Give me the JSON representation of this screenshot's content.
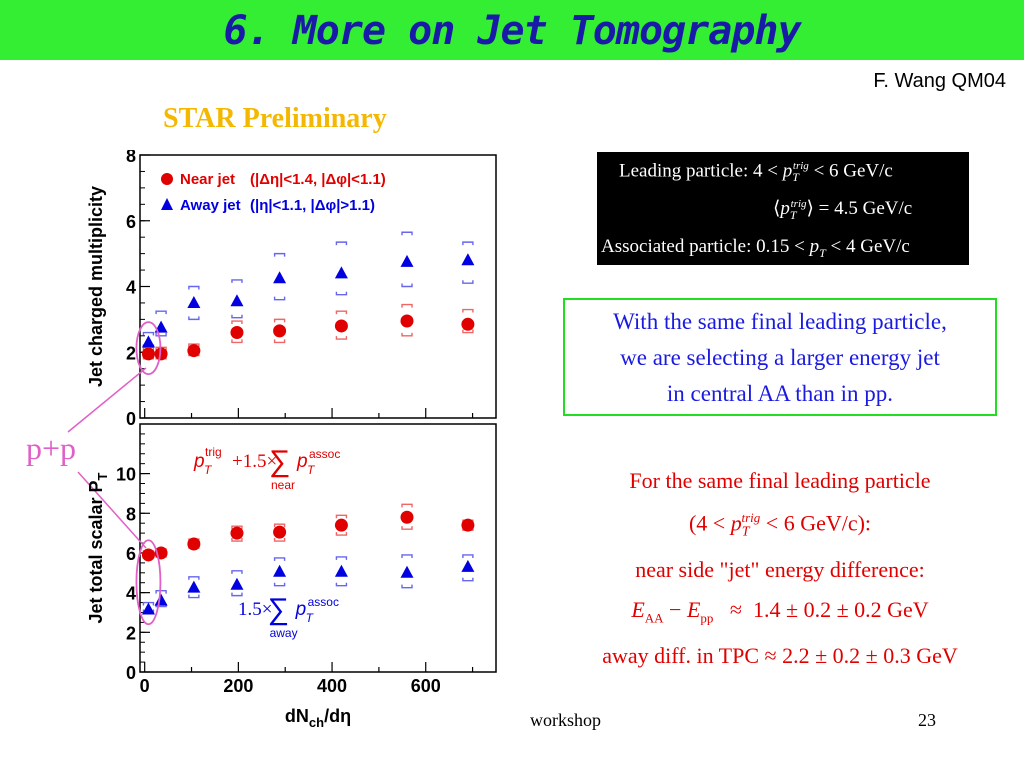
{
  "slide": {
    "title": "6. More on Jet Tomography",
    "author": "F. Wang QM04",
    "preliminary_label": "STAR Preliminary",
    "pp_label": "p+p",
    "footer_center": "workshop",
    "page_number": "23"
  },
  "trigger_box": {
    "line1": "Leading particle: 4 < p_T^trig < 6 GeV/c",
    "line2": "<p_T^trig> = 4.5 GeV/c",
    "line3": "Associated particle: 0.15 < p_T < 4 GeV/c"
  },
  "green_box": {
    "line1": "With the same final leading particle,",
    "line2": "we are selecting a larger energy jet",
    "line3": "in central AA than in pp."
  },
  "conclusion": {
    "line1": "For the same final leading particle",
    "line2": "(4 < p_T^trig < 6 GeV/c):",
    "line3": "near side \"jet\" energy difference:",
    "line4": "E_AA − E_pp ≈ 1.4 ± 0.2 ± 0.2 GeV",
    "line5": "away diff. in TPC ≈ 2.2 ± 0.2 ± 0.3 GeV"
  },
  "chart_data": [
    {
      "type": "scatter",
      "ylabel": "Jet charged multiplicity",
      "ylim": [
        0,
        8
      ],
      "yticks": [
        0,
        2,
        4,
        6,
        8
      ],
      "xlim": [
        -10,
        750
      ],
      "legend": [
        {
          "name": "Near jet",
          "cut": "(|Δη|<1.4, |Δφ|<1.1)",
          "color": "#e00000",
          "marker": "circle"
        },
        {
          "name": "Away jet",
          "cut": "(|η|<1.1, |Δφ|>1.1)",
          "color": "#0000e0",
          "marker": "triangle"
        }
      ],
      "series": [
        {
          "name": "Near jet",
          "x": [
            8,
            35,
            105,
            197,
            288,
            420,
            560,
            690
          ],
          "y": [
            1.95,
            1.95,
            2.05,
            2.6,
            2.65,
            2.8,
            2.95,
            2.85
          ],
          "sys_low": [
            1.8,
            1.8,
            1.9,
            2.3,
            2.3,
            2.4,
            2.5,
            2.6
          ],
          "sys_high": [
            2.15,
            2.15,
            2.25,
            2.95,
            3.0,
            3.25,
            3.45,
            3.3
          ]
        },
        {
          "name": "Away jet",
          "x": [
            8,
            35,
            105,
            197,
            288,
            420,
            560,
            690
          ],
          "y": [
            2.3,
            2.75,
            3.5,
            3.55,
            4.25,
            4.4,
            4.75,
            4.8
          ],
          "sys_low": [
            2.15,
            2.5,
            3.0,
            3.05,
            3.6,
            3.75,
            4.0,
            4.1
          ],
          "sys_high": [
            2.6,
            3.25,
            4.0,
            4.2,
            5.0,
            5.35,
            5.65,
            5.35
          ]
        }
      ]
    },
    {
      "type": "scatter",
      "ylabel": "Jet total scalar P_T",
      "xlabel": "dN_ch/dη",
      "ylim": [
        0,
        12.5
      ],
      "yticks": [
        0,
        2,
        4,
        6,
        8,
        10
      ],
      "xticks": [
        0,
        200,
        400,
        600
      ],
      "xlim": [
        -10,
        750
      ],
      "annotations": [
        "p_T^trig + 1.5 × Σ_near p_T^assoc",
        "1.5 × Σ_away p_T^assoc"
      ],
      "series": [
        {
          "name": "Near jet",
          "x": [
            8,
            35,
            105,
            197,
            288,
            420,
            560,
            690
          ],
          "y": [
            5.9,
            6.0,
            6.45,
            7.0,
            7.05,
            7.4,
            7.8,
            7.4
          ],
          "sys_low": [
            5.75,
            5.8,
            6.25,
            6.6,
            6.6,
            6.9,
            7.2,
            7.15
          ],
          "sys_high": [
            6.1,
            6.2,
            6.7,
            7.35,
            7.45,
            7.9,
            8.45,
            7.65
          ]
        },
        {
          "name": "Away jet",
          "x": [
            8,
            35,
            105,
            197,
            288,
            420,
            560,
            690
          ],
          "y": [
            3.15,
            3.6,
            4.25,
            4.4,
            5.05,
            5.05,
            5.0,
            5.3
          ],
          "sys_low": [
            3.0,
            3.3,
            3.75,
            3.85,
            4.35,
            4.35,
            4.25,
            4.6
          ],
          "sys_high": [
            3.5,
            4.1,
            4.8,
            5.1,
            5.75,
            5.8,
            5.9,
            5.9
          ]
        }
      ]
    }
  ],
  "colors": {
    "title_bar": "#33ee33",
    "title_text": "#1a1aa8",
    "near": "#e00000",
    "away": "#0000e0",
    "highlight": "#e060c8"
  }
}
